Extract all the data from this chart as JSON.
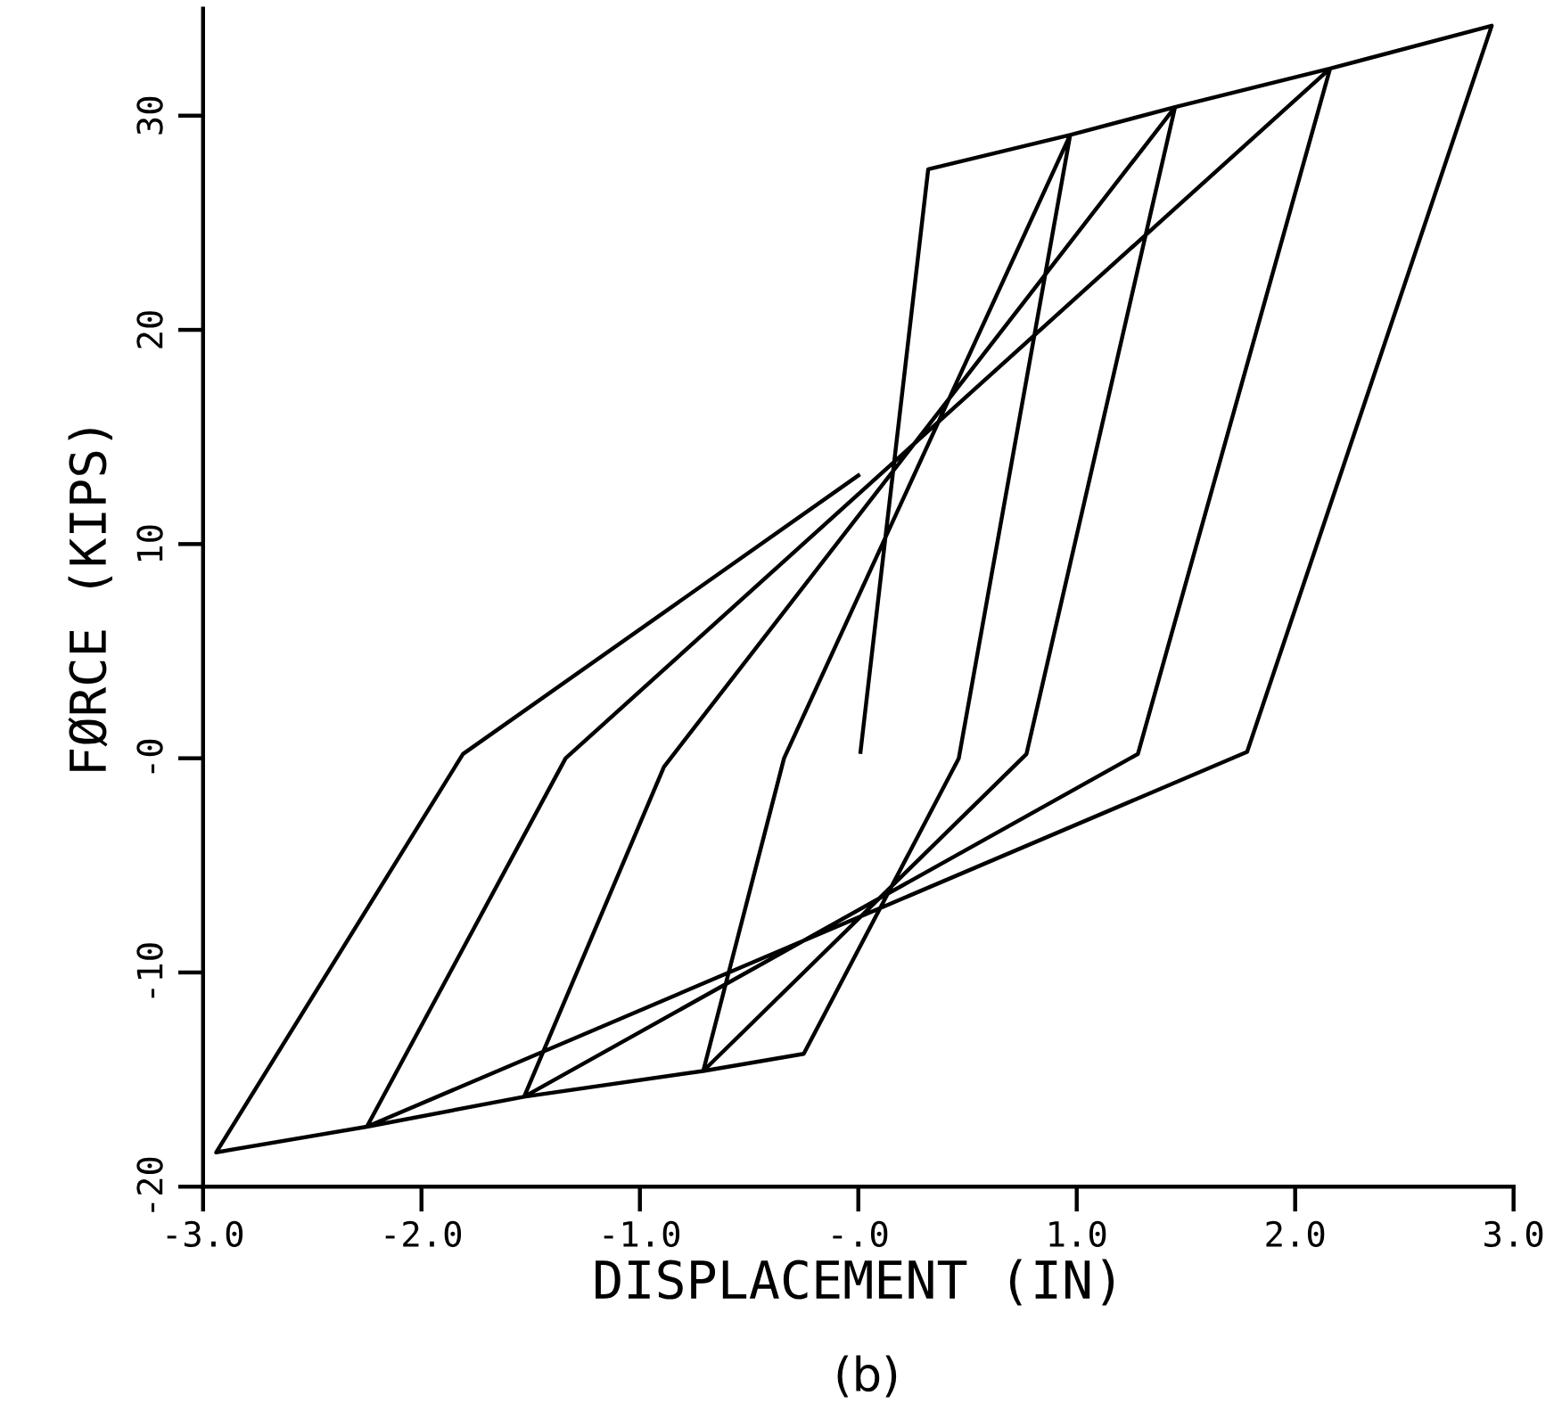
{
  "chart_data": {
    "type": "line",
    "xlabel": "DISPLACEMENT (IN)",
    "ylabel": "FØRCE (KIPS)",
    "annotations": [
      "(b)"
    ],
    "x": [
      0.01,
      0.32,
      0.97,
      0.46,
      -0.25,
      -0.71,
      -0.34,
      0.97,
      1.45,
      0.77,
      -0.71,
      -1.53,
      -0.89,
      1.45,
      2.16,
      1.28,
      -1.53,
      -2.25,
      -1.34,
      2.16,
      2.9,
      1.78,
      -2.25,
      -2.94,
      -1.81,
      0.0
    ],
    "series": [
      {
        "color": "#000000",
        "values": [
          0.3,
          27.5,
          29.1,
          0.0,
          -13.8,
          -14.6,
          0.0,
          29.1,
          30.4,
          0.2,
          -14.6,
          -15.8,
          -0.4,
          30.4,
          32.2,
          0.2,
          -15.8,
          -17.2,
          0.0,
          32.2,
          34.2,
          0.3,
          -17.2,
          -18.4,
          0.2,
          13.2
        ]
      }
    ],
    "xlim": [
      -3,
      3
    ],
    "ylim": [
      -20,
      35
    ],
    "xticks": [
      {
        "value": -3,
        "label": "-3.0"
      },
      {
        "value": -2,
        "label": "-2.0"
      },
      {
        "value": -1,
        "label": "-1.0"
      },
      {
        "value": 0,
        "label": "-.0"
      },
      {
        "value": 1,
        "label": "1.0"
      },
      {
        "value": 2,
        "label": "2.0"
      },
      {
        "value": 3,
        "label": "3.0"
      }
    ],
    "yticks": [
      {
        "value": -20,
        "label": "-20"
      },
      {
        "value": -10,
        "label": "-10"
      },
      {
        "value": 0,
        "label": "-0"
      },
      10,
      20,
      30
    ],
    "grid": false,
    "marker": "none",
    "line_style": "solid"
  }
}
